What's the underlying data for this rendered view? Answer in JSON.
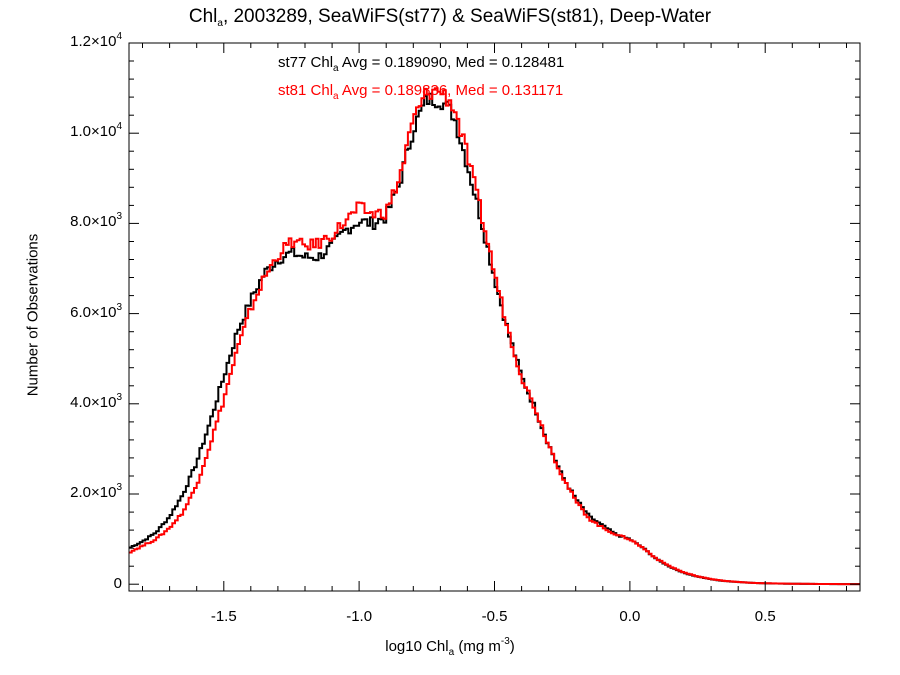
{
  "chart_data": {
    "type": "line",
    "title": {
      "prefix": "Chl",
      "sub": "a",
      "suffix": ", 2003289, SeaWiFS(st77) & SeaWiFS(st81), Deep-Water"
    },
    "xlabel": {
      "prefix": "log10 Chl",
      "sub": "a",
      "mid": " (mg m",
      "sup": "-3",
      "suffix": ")"
    },
    "ylabel": "Number of Observations",
    "xlim": [
      -1.85,
      0.85
    ],
    "ylim": [
      -150,
      12000
    ],
    "x_ticks": [
      {
        "value": -1.5,
        "label": "-1.5"
      },
      {
        "value": -1.0,
        "label": "-1.0"
      },
      {
        "value": -0.5,
        "label": "-0.5"
      },
      {
        "value": 0.0,
        "label": "0.0"
      },
      {
        "value": 0.5,
        "label": "0.5"
      }
    ],
    "y_ticks": [
      {
        "value": 0,
        "mant": "0",
        "exp": ""
      },
      {
        "value": 2000,
        "mant": "2.0×10",
        "exp": "3"
      },
      {
        "value": 4000,
        "mant": "4.0×10",
        "exp": "3"
      },
      {
        "value": 6000,
        "mant": "6.0×10",
        "exp": "3"
      },
      {
        "value": 8000,
        "mant": "8.0×10",
        "exp": "3"
      },
      {
        "value": 10000,
        "mant": "1.0×10",
        "exp": "4"
      },
      {
        "value": 12000,
        "mant": "1.2×10",
        "exp": "4"
      }
    ],
    "annotations": [
      {
        "prefix": "st77 Chl",
        "sub": "a",
        "suffix": " Avg = 0.189090, Med = 0.128481",
        "color": "#000000"
      },
      {
        "prefix": "st81 Chl",
        "sub": "a",
        "suffix": " Avg = 0.189836, Med = 0.131171",
        "color": "#ff0000"
      }
    ],
    "grid": false,
    "step": "histogram",
    "series": [
      {
        "name": "st77",
        "color": "#000000",
        "points": [
          [
            -1.85,
            800
          ],
          [
            -1.8,
            950
          ],
          [
            -1.75,
            1150
          ],
          [
            -1.7,
            1500
          ],
          [
            -1.65,
            2000
          ],
          [
            -1.6,
            2700
          ],
          [
            -1.55,
            3600
          ],
          [
            -1.5,
            4600
          ],
          [
            -1.45,
            5600
          ],
          [
            -1.4,
            6300
          ],
          [
            -1.35,
            6900
          ],
          [
            -1.3,
            7200
          ],
          [
            -1.25,
            7350
          ],
          [
            -1.2,
            7250
          ],
          [
            -1.15,
            7250
          ],
          [
            -1.1,
            7500
          ],
          [
            -1.05,
            7850
          ],
          [
            -1.0,
            8050
          ],
          [
            -0.95,
            8000
          ],
          [
            -0.9,
            8150
          ],
          [
            -0.85,
            8900
          ],
          [
            -0.8,
            10100
          ],
          [
            -0.75,
            10750
          ],
          [
            -0.7,
            10750
          ],
          [
            -0.65,
            10400
          ],
          [
            -0.6,
            9300
          ],
          [
            -0.55,
            8100
          ],
          [
            -0.5,
            6800
          ],
          [
            -0.45,
            5600
          ],
          [
            -0.4,
            4600
          ],
          [
            -0.35,
            3900
          ],
          [
            -0.3,
            3100
          ],
          [
            -0.25,
            2400
          ],
          [
            -0.2,
            1900
          ],
          [
            -0.15,
            1500
          ],
          [
            -0.1,
            1300
          ],
          [
            -0.05,
            1100
          ],
          [
            0.0,
            1000
          ],
          [
            0.05,
            800
          ],
          [
            0.1,
            550
          ],
          [
            0.15,
            380
          ],
          [
            0.2,
            250
          ],
          [
            0.25,
            170
          ],
          [
            0.3,
            110
          ],
          [
            0.35,
            70
          ],
          [
            0.4,
            50
          ],
          [
            0.45,
            30
          ],
          [
            0.5,
            20
          ],
          [
            0.6,
            10
          ],
          [
            0.7,
            5
          ],
          [
            0.85,
            2
          ]
        ]
      },
      {
        "name": "st81",
        "color": "#ff0000",
        "points": [
          [
            -1.85,
            700
          ],
          [
            -1.8,
            850
          ],
          [
            -1.75,
            1000
          ],
          [
            -1.7,
            1250
          ],
          [
            -1.65,
            1600
          ],
          [
            -1.6,
            2200
          ],
          [
            -1.55,
            3100
          ],
          [
            -1.5,
            4100
          ],
          [
            -1.45,
            5200
          ],
          [
            -1.4,
            6100
          ],
          [
            -1.35,
            6800
          ],
          [
            -1.3,
            7300
          ],
          [
            -1.25,
            7600
          ],
          [
            -1.2,
            7500
          ],
          [
            -1.15,
            7550
          ],
          [
            -1.1,
            7750
          ],
          [
            -1.05,
            8050
          ],
          [
            -1.0,
            8350
          ],
          [
            -0.95,
            8200
          ],
          [
            -0.9,
            8250
          ],
          [
            -0.85,
            9000
          ],
          [
            -0.8,
            10300
          ],
          [
            -0.75,
            10900
          ],
          [
            -0.7,
            10950
          ],
          [
            -0.65,
            10600
          ],
          [
            -0.6,
            9500
          ],
          [
            -0.55,
            8250
          ],
          [
            -0.5,
            6900
          ],
          [
            -0.45,
            5650
          ],
          [
            -0.4,
            4600
          ],
          [
            -0.35,
            3900
          ],
          [
            -0.3,
            3100
          ],
          [
            -0.25,
            2400
          ],
          [
            -0.2,
            1850
          ],
          [
            -0.15,
            1450
          ],
          [
            -0.1,
            1250
          ],
          [
            -0.05,
            1100
          ],
          [
            0.0,
            1000
          ],
          [
            0.05,
            800
          ],
          [
            0.1,
            560
          ],
          [
            0.15,
            390
          ],
          [
            0.2,
            260
          ],
          [
            0.25,
            175
          ],
          [
            0.3,
            115
          ],
          [
            0.35,
            75
          ],
          [
            0.4,
            50
          ],
          [
            0.45,
            30
          ],
          [
            0.5,
            22
          ],
          [
            0.6,
            12
          ],
          [
            0.7,
            6
          ],
          [
            0.85,
            2
          ]
        ]
      }
    ]
  }
}
